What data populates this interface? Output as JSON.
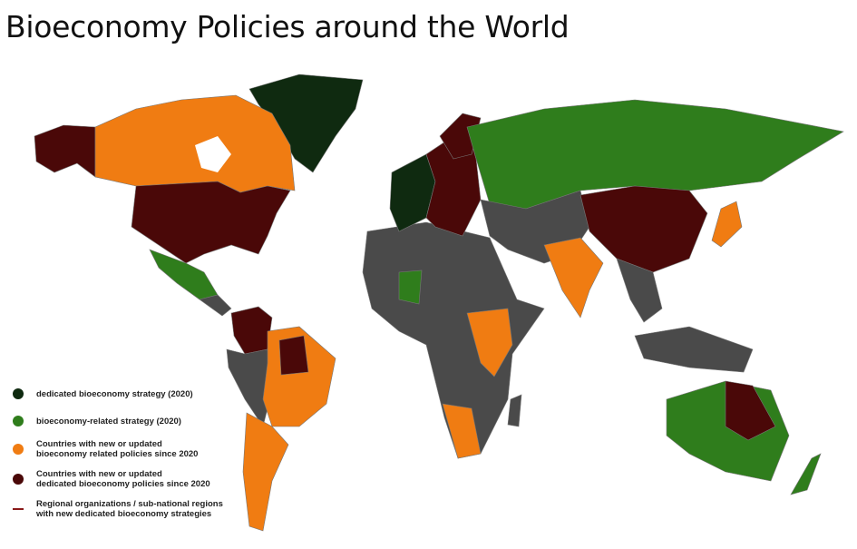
{
  "title": "Bioeconomy Policies around the World",
  "colors": {
    "dedicated_2020": "#0f2a10",
    "related_2020": "#2f7d1c",
    "related_since_2020": "#f07c12",
    "dedicated_since_2020": "#4a0808",
    "regional_line": "#8a1a1a",
    "no_policy": "#4a4a4a"
  },
  "legend": [
    {
      "label": "dedicated bioeconomy strategy (2020)",
      "color_key": "dedicated_2020",
      "marker": "dot"
    },
    {
      "label": "bioeconomy-related strategy (2020)",
      "color_key": "related_2020",
      "marker": "dot"
    },
    {
      "label": "Countries with new or updated bioeconomy related policies since 2020",
      "line1": "Countries with new or updated",
      "line2": "bioeconomy related policies since 2020",
      "color_key": "related_since_2020",
      "marker": "dot"
    },
    {
      "label": "Countries with new or updated dedicated bioeconomy policies since 2020",
      "line1": "Countries with new or updated",
      "line2": "dedicated bioeconomy policies since 2020",
      "color_key": "dedicated_since_2020",
      "marker": "dot"
    },
    {
      "label": "Regional organizations / sub-national regions with new dedicated bioeconomy strategies",
      "line1": "Regional organizations / sub-national regions",
      "line2": "with new dedicated bioeconomy strategies",
      "color_key": "regional_line",
      "marker": "line"
    }
  ]
}
